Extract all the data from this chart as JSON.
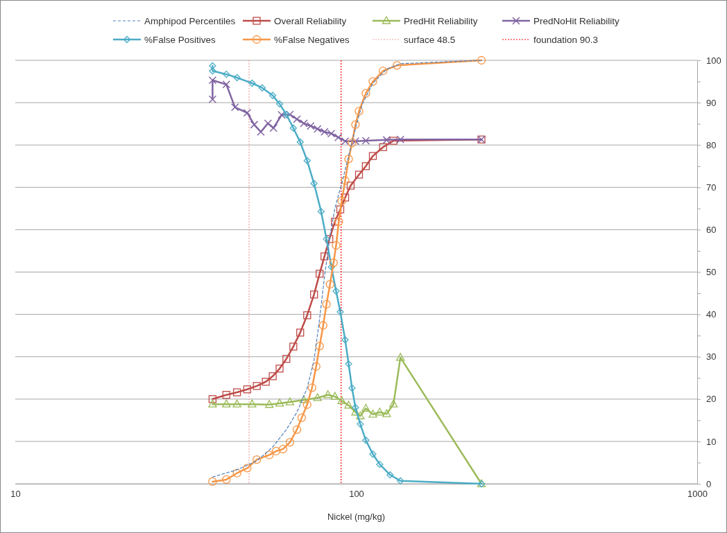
{
  "chart_data": {
    "type": "line",
    "xlabel": "Nickel (mg/kg)",
    "log": "x",
    "xlim": [
      10,
      1000
    ],
    "xticks": [
      10,
      100,
      1000
    ],
    "ylim": [
      0,
      100
    ],
    "yticks": [
      0,
      {
        "value": 5,
        "label": null
      },
      10,
      {
        "value": 15,
        "label": null
      },
      20,
      {
        "value": 25,
        "label": null
      },
      30,
      {
        "value": 35,
        "label": null
      },
      40,
      {
        "value": 45,
        "label": null
      },
      50,
      {
        "value": 55,
        "label": null
      },
      60,
      {
        "value": 65,
        "label": null
      },
      70,
      {
        "value": 75,
        "label": null
      },
      80,
      {
        "value": 85,
        "label": null
      },
      90,
      {
        "value": 95,
        "label": null
      },
      100
    ],
    "grid": "y",
    "legend": "top",
    "series": [
      {
        "name": "Amphipod Percentiles",
        "color": "#4f81bd",
        "line_style": "dashed",
        "marker": "none",
        "x": [
          37.9,
          44.7,
          51.1,
          56.9,
          62.4,
          67.0,
          71.8,
          75.2,
          78.1,
          80.7,
          83.8,
          86.6,
          90.7,
          95.0,
          99.5,
          104.2,
          111.9,
          122.8,
          134.8,
          233
        ],
        "values": [
          1.6,
          3.3,
          5.4,
          8.7,
          12.8,
          16.9,
          22.6,
          29.1,
          39,
          48.8,
          58.6,
          65.1,
          70.9,
          77.4,
          84,
          89.7,
          94.6,
          97.9,
          99.2,
          100
        ]
      },
      {
        "name": "Overall Reliability",
        "color": "#be4b48",
        "marker": "square",
        "x": [
          37.9,
          41.6,
          44.7,
          47.9,
          51.1,
          54.3,
          56.9,
          59.6,
          62.4,
          65.4,
          68.5,
          71.8,
          75.2,
          78.1,
          80.7,
          83.4,
          86.6,
          89.8,
          92.8,
          96.3,
          101.9,
          106.7,
          111.9,
          119.9,
          128.6,
          233
        ],
        "values": [
          20,
          21,
          21.6,
          22.3,
          23.1,
          24.1,
          25.4,
          27.2,
          29.5,
          32.4,
          35.7,
          39.8,
          44.7,
          49.6,
          53.7,
          57.8,
          61.9,
          64.8,
          67.6,
          70.4,
          73,
          75,
          77.4,
          79.5,
          81,
          81.3
        ]
      },
      {
        "name": "PredHit Reliability",
        "color": "#9bbb59",
        "marker": "triangle",
        "x": [
          37.9,
          41.6,
          44.7,
          49.5,
          55.6,
          59.6,
          63.9,
          70.2,
          77.0,
          82.6,
          86.6,
          90.7,
          95.0,
          99.5,
          102.8,
          106.7,
          111.9,
          117.2,
          122.8,
          128.6,
          134.8,
          233
        ],
        "values": [
          18.8,
          18.8,
          18.8,
          18.8,
          18.7,
          19,
          19.3,
          19.8,
          20.3,
          21,
          20.6,
          19.6,
          18.5,
          16.9,
          16,
          17.8,
          16.4,
          16.9,
          16.5,
          18.8,
          29.8,
          0
        ]
      },
      {
        "name": "PredNoHit Reliability",
        "color": "#8064a2",
        "marker": "cross",
        "x": [
          37.9,
          37.9,
          41.6,
          44.1,
          47.9,
          50.2,
          52.5,
          55.1,
          57.2,
          60.4,
          63.9,
          67.0,
          70.2,
          73.5,
          77.0,
          80.7,
          84.5,
          88.6,
          92.8,
          99.5,
          106.7,
          122.8,
          134.8,
          233
        ],
        "values": [
          90.8,
          95.3,
          94.3,
          88.9,
          87.6,
          84.8,
          83.1,
          85.1,
          84,
          87.1,
          87.2,
          86.1,
          85.1,
          84.5,
          83.8,
          83.1,
          82.7,
          81.8,
          80.9,
          80.9,
          81,
          81.2,
          81.3,
          81.3
        ]
      },
      {
        "name": "%False Positives",
        "color": "#4bacc6",
        "marker": "diamond",
        "x": [
          37.9,
          37.9,
          41.6,
          44.7,
          49.5,
          53.0,
          56.9,
          59.6,
          62.4,
          65.4,
          68.5,
          71.8,
          75.2,
          78.9,
          81.8,
          84.6,
          87.3,
          89.8,
          92.8,
          95.0,
          97.2,
          99.5,
          102.8,
          106.7,
          111.9,
          117.2,
          125.7,
          134.8,
          233
        ],
        "values": [
          98.7,
          97.5,
          96.7,
          95.9,
          94.6,
          93.5,
          91.7,
          89.7,
          87.2,
          84,
          80.7,
          76.3,
          70.9,
          64.3,
          57.8,
          51.2,
          45.5,
          40.6,
          34,
          28.3,
          22.6,
          18,
          14.1,
          10.3,
          7.0,
          4.6,
          2.1,
          0.7,
          0
        ]
      },
      {
        "name": "%False Negatives",
        "color": "#f79646",
        "marker": "circle",
        "x": [
          37.9,
          41.6,
          44.7,
          47.9,
          51.1,
          55.6,
          58.2,
          61.0,
          63.9,
          67.0,
          69.2,
          71.8,
          74.2,
          76.3,
          78.1,
          80.0,
          81.8,
          83.8,
          85.8,
          87.3,
          88.9,
          90.7,
          92.8,
          95.0,
          97.2,
          99.5,
          101.9,
          106.7,
          111.9,
          119.9,
          131.7,
          233
        ],
        "values": [
          0.5,
          1,
          2.5,
          3.7,
          5.7,
          6.8,
          7.7,
          8.2,
          9.8,
          12.8,
          15.6,
          18.7,
          22.7,
          27.7,
          32.5,
          37.4,
          42.4,
          47.1,
          52.2,
          56.3,
          61.9,
          66.8,
          71.6,
          76.7,
          80.5,
          84.8,
          88,
          92.2,
          95,
          97.5,
          98.8,
          100
        ]
      }
    ],
    "ref_lines": [
      {
        "axis": "x",
        "value": 48.5,
        "label": "surface 48.5",
        "color": "#f2a0a0",
        "line_style": "dotted"
      },
      {
        "axis": "x",
        "value": 90.3,
        "label": "foundation 90.3",
        "color": "#ff0000",
        "line_style": "dotted"
      }
    ]
  }
}
